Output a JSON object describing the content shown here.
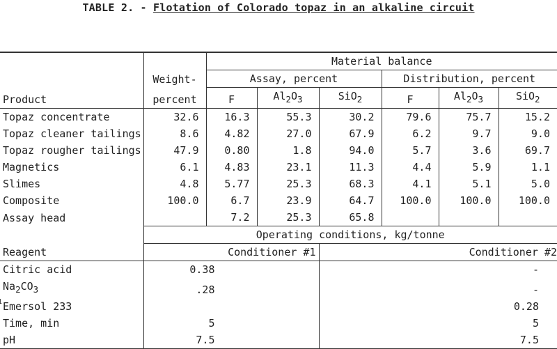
{
  "title": {
    "prefix": "TABLE 2. - ",
    "subject": "Flotation of Colorado topaz in an alkaline circuit"
  },
  "headers": {
    "material_balance": "Material balance",
    "weight_line1": "Weight-",
    "weight_line2": "percent",
    "assay": "Assay, percent",
    "distribution": "Distribution, percent",
    "product": "Product",
    "cols": [
      "F",
      "Al2O3",
      "SiO2",
      "F",
      "Al2O3",
      "SiO2"
    ]
  },
  "products": [
    {
      "name": "Topaz concentrate",
      "weight": "32.6",
      "assay": [
        "16.3",
        "55.3",
        "30.2"
      ],
      "dist": [
        "79.6",
        "75.7",
        "15.2"
      ]
    },
    {
      "name": "Topaz cleaner tailings",
      "weight": "8.6",
      "assay": [
        "4.82",
        "27.0",
        "67.9"
      ],
      "dist": [
        "6.2",
        "9.7",
        "9.0"
      ]
    },
    {
      "name": "Topaz rougher tailings",
      "weight": "47.9",
      "assay": [
        "0.80",
        "1.8",
        "94.0"
      ],
      "dist": [
        "5.7",
        "3.6",
        "69.7"
      ]
    },
    {
      "name": "Magnetics",
      "weight": "6.1",
      "assay": [
        "4.83",
        "23.1",
        "11.3"
      ],
      "dist": [
        "4.4",
        "5.9",
        "1.1"
      ]
    },
    {
      "name": "Slimes",
      "weight": "4.8",
      "assay": [
        "5.77",
        "25.3",
        "68.3"
      ],
      "dist": [
        "4.1",
        "5.1",
        "5.0"
      ]
    },
    {
      "name": "Composite",
      "weight": "100.0",
      "assay": [
        "6.7",
        "23.9",
        "64.7"
      ],
      "dist": [
        "100.0",
        "100.0",
        "100.0"
      ]
    },
    {
      "name": "Assay head",
      "weight": "",
      "assay": [
        "7.2",
        "25.3",
        "65.8"
      ],
      "dist": [
        "",
        "",
        ""
      ]
    }
  ],
  "operating": {
    "header": "Operating conditions, kg/tonne",
    "reagent_label": "Reagent",
    "cond1": "Conditioner #1",
    "cond2": "Conditioner #2",
    "rows": [
      {
        "name": "Citric acid",
        "c1": "0.38",
        "c2": "-"
      },
      {
        "name": "Na2CO3",
        "c1": ".28",
        "c2": "-"
      },
      {
        "name": "Emersol 233",
        "c1": "",
        "c2": "0.28",
        "footnote": "1"
      },
      {
        "name": "Time, min",
        "c1": "5",
        "c2": "5"
      },
      {
        "name": "pH",
        "c1": "7.5",
        "c2": "7.5"
      }
    ]
  }
}
